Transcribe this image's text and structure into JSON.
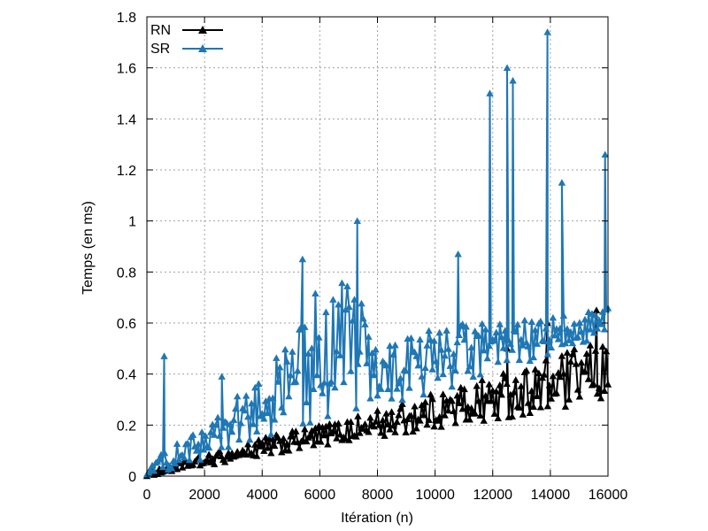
{
  "chart_data": {
    "type": "line",
    "title": "",
    "xlabel": "Itération (n)",
    "ylabel": "Temps (en ms)",
    "xlim": [
      0,
      16000
    ],
    "ylim": [
      0,
      1.8
    ],
    "xticks": [
      0,
      2000,
      4000,
      6000,
      8000,
      10000,
      12000,
      14000,
      16000
    ],
    "yticks": [
      0,
      0.2,
      0.4,
      0.6,
      0.8,
      1,
      1.2,
      1.4,
      1.6,
      1.8
    ],
    "grid": true,
    "legend_position": "top-left",
    "series": [
      {
        "name": "RN",
        "color": "#000000",
        "marker": "triangle",
        "baseline": [
          [
            0,
            0.0
          ],
          [
            2000,
            0.04
          ],
          [
            4000,
            0.08
          ],
          [
            6000,
            0.12
          ],
          [
            8000,
            0.15
          ],
          [
            10000,
            0.19
          ],
          [
            12000,
            0.22
          ],
          [
            14000,
            0.26
          ],
          [
            16000,
            0.3
          ]
        ],
        "upper_envelope": [
          [
            0,
            0.02
          ],
          [
            2000,
            0.08
          ],
          [
            4000,
            0.15
          ],
          [
            6000,
            0.2
          ],
          [
            8000,
            0.26
          ],
          [
            10000,
            0.33
          ],
          [
            12000,
            0.4
          ],
          [
            14000,
            0.46
          ],
          [
            16000,
            0.55
          ]
        ],
        "peaks": [
          [
            12500,
            0.5
          ],
          [
            13900,
            0.6
          ],
          [
            15600,
            0.65
          ]
        ]
      },
      {
        "name": "SR",
        "color": "#1f77b4",
        "marker": "triangle",
        "baseline": [
          [
            0,
            0.0
          ],
          [
            2000,
            0.07
          ],
          [
            4000,
            0.15
          ],
          [
            6000,
            0.22
          ],
          [
            8000,
            0.27
          ],
          [
            10000,
            0.33
          ],
          [
            12000,
            0.4
          ],
          [
            14000,
            0.48
          ],
          [
            16000,
            0.56
          ]
        ],
        "upper_envelope": [
          [
            0,
            0.05
          ],
          [
            2000,
            0.2
          ],
          [
            4000,
            0.4
          ],
          [
            6000,
            0.75
          ],
          [
            7300,
            0.85
          ],
          [
            8000,
            0.5
          ],
          [
            10000,
            0.6
          ],
          [
            12000,
            0.6
          ],
          [
            14000,
            0.62
          ],
          [
            16000,
            0.68
          ]
        ],
        "peaks": [
          [
            600,
            0.47
          ],
          [
            2600,
            0.39
          ],
          [
            5400,
            0.85
          ],
          [
            7300,
            1.0
          ],
          [
            10800,
            0.87
          ],
          [
            11900,
            1.5
          ],
          [
            12500,
            1.6
          ],
          [
            12700,
            1.55
          ],
          [
            13900,
            1.74
          ],
          [
            14400,
            1.15
          ],
          [
            15900,
            1.26
          ]
        ]
      }
    ]
  }
}
